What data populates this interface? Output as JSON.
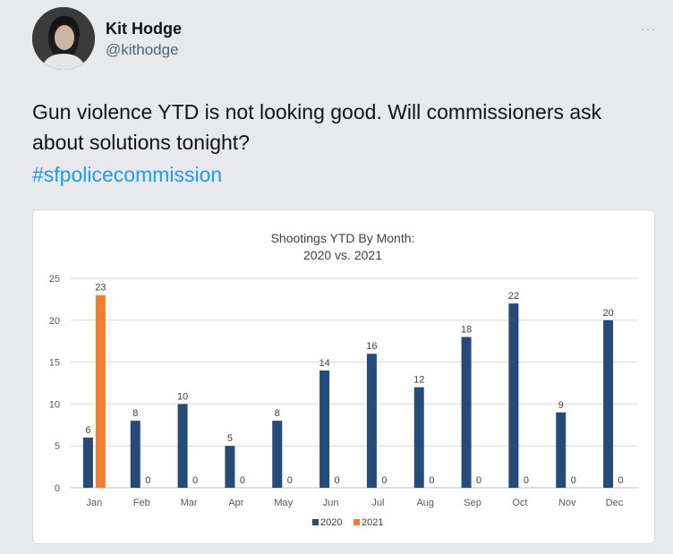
{
  "tweet": {
    "author_name": "Kit Hodge",
    "author_handle": "@kithodge",
    "more_label": "···",
    "text": "Gun violence YTD is not looking good. Will commissioners ask about solutions tonight?",
    "hashtag": "#sfpolicecommission"
  },
  "avatar": {
    "icon": "profile-photo"
  },
  "chart_data": {
    "type": "bar",
    "title": "Shootings YTD By Month:",
    "subtitle": "2020 vs. 2021",
    "xlabel": "",
    "ylabel": "",
    "categories": [
      "Jan",
      "Feb",
      "Mar",
      "Apr",
      "May",
      "Jun",
      "Jul",
      "Aug",
      "Sep",
      "Oct",
      "Nov",
      "Dec"
    ],
    "series": [
      {
        "name": "2020",
        "color": "#264b78",
        "values": [
          6,
          8,
          10,
          5,
          8,
          14,
          16,
          12,
          18,
          22,
          9,
          20
        ]
      },
      {
        "name": "2021",
        "color": "#f07f2f",
        "values": [
          23,
          0,
          0,
          0,
          0,
          0,
          0,
          0,
          0,
          0,
          0,
          0
        ]
      }
    ],
    "ylim": [
      0,
      25
    ],
    "yticks": [
      0,
      5,
      10,
      15,
      20,
      25
    ],
    "grid": true,
    "legend_position": "bottom"
  }
}
